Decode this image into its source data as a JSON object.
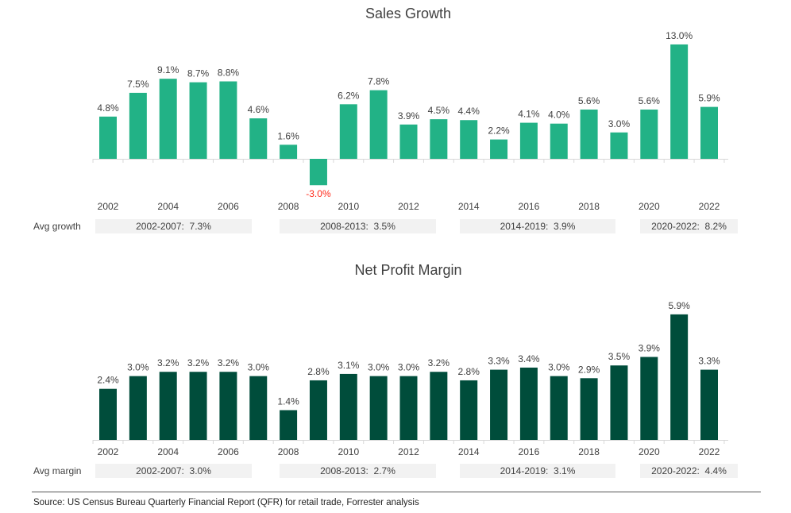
{
  "chart_data": [
    {
      "type": "bar",
      "title": "Sales Growth",
      "categories": [
        "2002",
        "2003",
        "2004",
        "2005",
        "2006",
        "2007",
        "2008",
        "2009",
        "2010",
        "2011",
        "2012",
        "2013",
        "2014",
        "2015",
        "2016",
        "2017",
        "2018",
        "2019",
        "2020",
        "2021",
        "2022"
      ],
      "tick_labels": [
        "2002",
        "2004",
        "2006",
        "2008",
        "2010",
        "2012",
        "2014",
        "2016",
        "2018",
        "2020",
        "2022"
      ],
      "values": [
        4.8,
        7.5,
        9.1,
        8.7,
        8.8,
        4.6,
        1.6,
        -3.0,
        6.2,
        7.8,
        3.9,
        4.5,
        4.4,
        2.2,
        4.1,
        4.0,
        5.6,
        3.0,
        5.6,
        13.0,
        5.9
      ],
      "data_labels": [
        "4.8%",
        "7.5%",
        "9.1%",
        "8.7%",
        "8.8%",
        "4.6%",
        "1.6%",
        "-3.0%",
        "6.2%",
        "7.8%",
        "3.9%",
        "4.5%",
        "4.4%",
        "2.2%",
        "4.1%",
        "4.0%",
        "5.6%",
        "3.0%",
        "5.6%",
        "13.0%",
        "5.9%"
      ],
      "ylim": [
        -3.5,
        13.5
      ],
      "bar_color": "#22b286",
      "negative_label_color": "#ff2a1a",
      "grid": false,
      "summary_label": "Avg growth",
      "summary": [
        "2002-2007:  7.3%",
        "2008-2013:  3.5%",
        "2014-2019:  3.9%",
        "2020-2022:  8.2%"
      ]
    },
    {
      "type": "bar",
      "title": "Net Profit Margin",
      "categories": [
        "2002",
        "2003",
        "2004",
        "2005",
        "2006",
        "2007",
        "2008",
        "2009",
        "2010",
        "2011",
        "2012",
        "2013",
        "2014",
        "2015",
        "2016",
        "2017",
        "2018",
        "2019",
        "2020",
        "2021",
        "2022"
      ],
      "tick_labels": [
        "2002",
        "2004",
        "2006",
        "2008",
        "2010",
        "2012",
        "2014",
        "2016",
        "2018",
        "2020",
        "2022"
      ],
      "values": [
        2.4,
        3.0,
        3.2,
        3.2,
        3.2,
        3.0,
        1.4,
        2.8,
        3.1,
        3.0,
        3.0,
        3.2,
        2.8,
        3.3,
        3.4,
        3.0,
        2.9,
        3.5,
        3.9,
        5.9,
        3.3
      ],
      "data_labels": [
        "2.4%",
        "3.0%",
        "3.2%",
        "3.2%",
        "3.2%",
        "3.0%",
        "1.4%",
        "2.8%",
        "3.1%",
        "3.0%",
        "3.0%",
        "3.2%",
        "2.8%",
        "3.3%",
        "3.4%",
        "3.0%",
        "2.9%",
        "3.5%",
        "3.9%",
        "5.9%",
        "3.3%"
      ],
      "ylim": [
        0,
        6.3
      ],
      "bar_color": "#004d3b",
      "grid": false,
      "summary_label": "Avg margin",
      "summary": [
        "2002-2007:  3.0%",
        "2008-2013:  2.7%",
        "2014-2019:  3.1%",
        "2020-2022:  4.4%"
      ]
    }
  ],
  "source": "Source: US Census Bureau Quarterly Financial Report (QFR) for retail trade, Forrester analysis"
}
